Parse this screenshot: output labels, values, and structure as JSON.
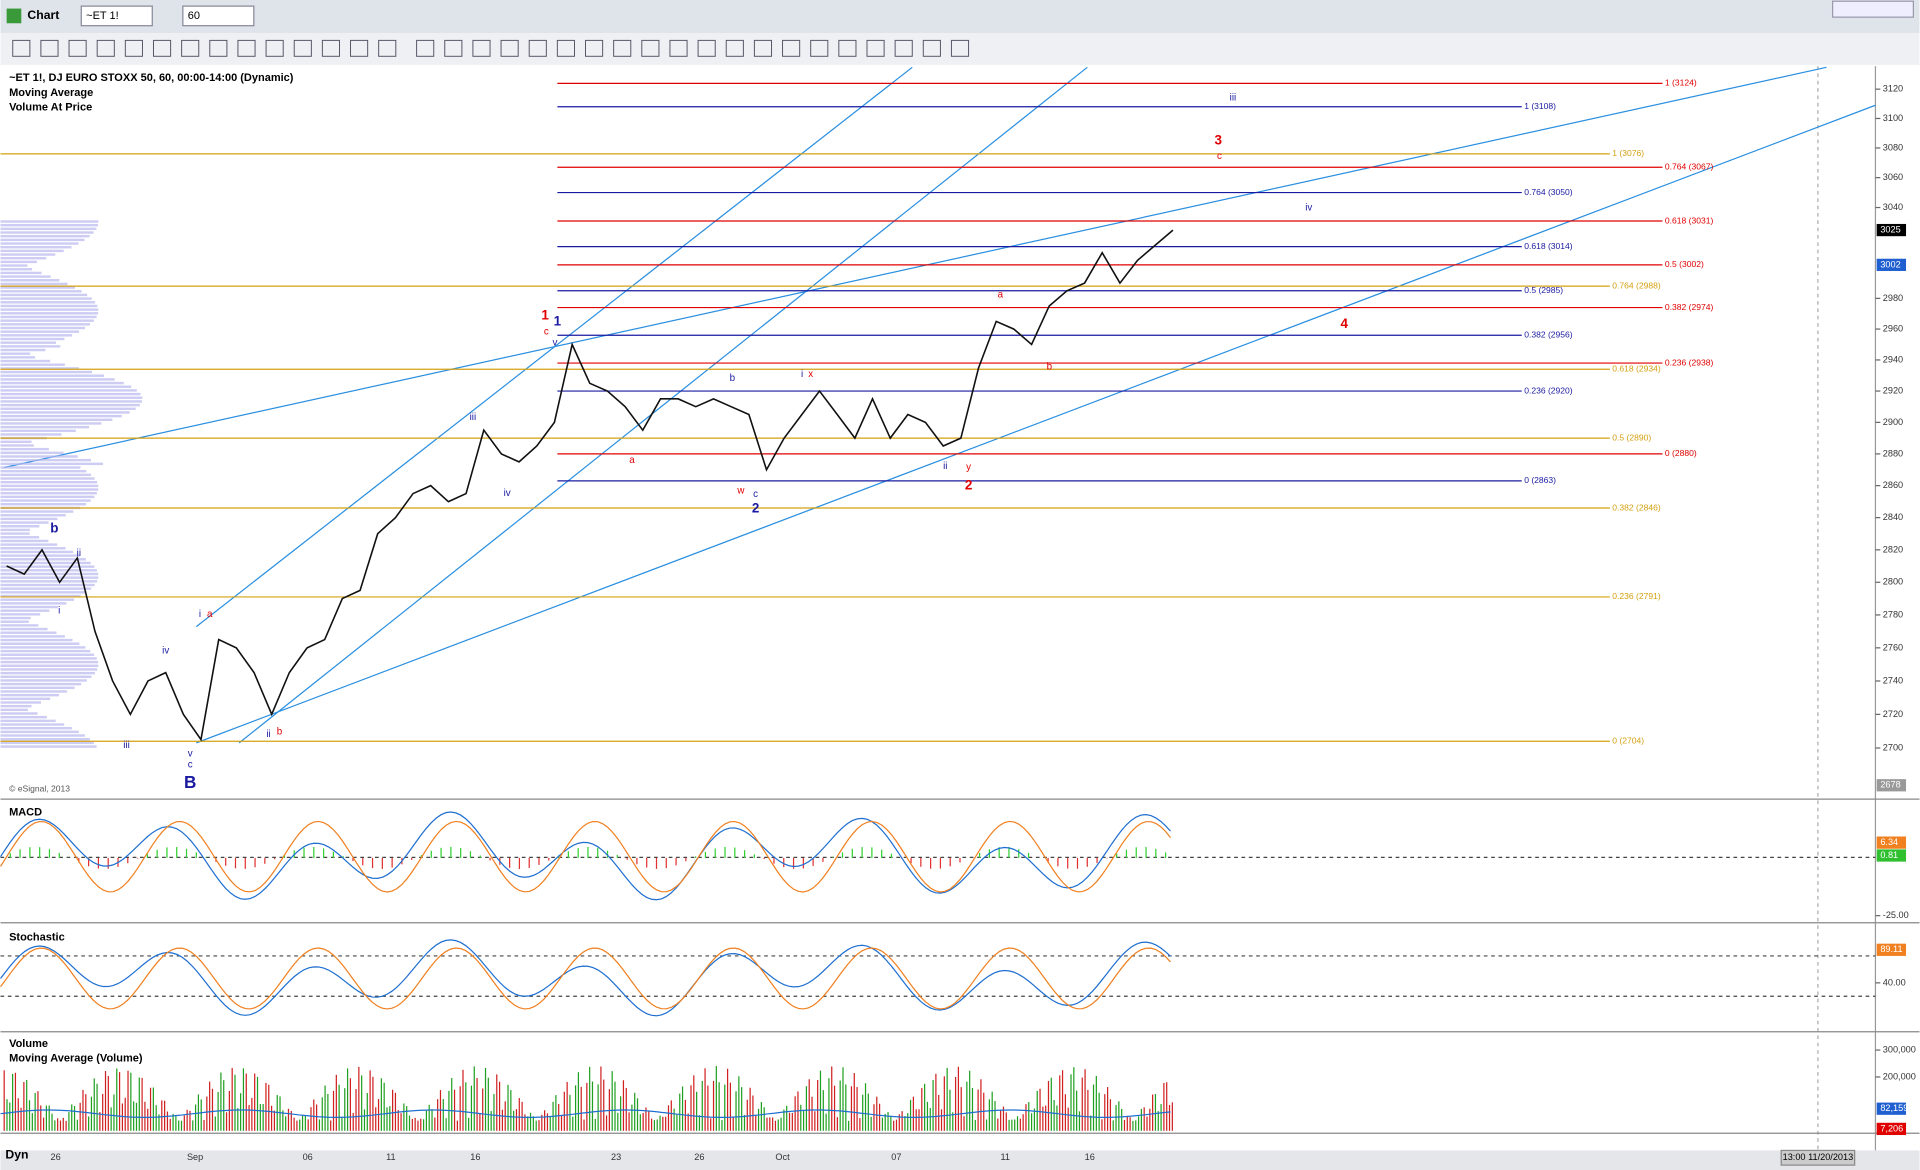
{
  "window": {
    "title": "Chart",
    "symbol": "~ET 1!",
    "interval": "60"
  },
  "legend": [
    "~ET 1!, DJ EURO STOXX 50, 60, 00:00-14:00 (Dynamic)",
    "Moving Average",
    "Volume At Price"
  ],
  "copyright": "© eSignal, 2013",
  "price": {
    "ylim": [
      2672,
      3135
    ],
    "log": true,
    "color": "#111111",
    "yticks": [
      2700,
      2720,
      2740,
      2760,
      2780,
      2800,
      2820,
      2840,
      2860,
      2880,
      2900,
      2920,
      2940,
      2960,
      2980,
      3040,
      3060,
      3080,
      3100,
      3120
    ],
    "closes": [
      2810,
      2805,
      2820,
      2800,
      2815,
      2770,
      2740,
      2720,
      2740,
      2745,
      2720,
      2705,
      2765,
      2760,
      2745,
      2720,
      2745,
      2760,
      2765,
      2790,
      2795,
      2830,
      2840,
      2855,
      2860,
      2850,
      2855,
      2895,
      2880,
      2875,
      2885,
      2900,
      2950,
      2925,
      2920,
      2910,
      2895,
      2915,
      2915,
      2910,
      2915,
      2910,
      2905,
      2870,
      2890,
      2905,
      2920,
      2905,
      2890,
      2915,
      2890,
      2905,
      2900,
      2885,
      2890,
      2935,
      2965,
      2960,
      2950,
      2975,
      2985,
      2990,
      3010,
      2990,
      3005,
      3015,
      3025
    ]
  },
  "markers": [
    {
      "value": 3025,
      "color": "#000000"
    },
    {
      "value": 3002,
      "color": "#1f5fd0"
    },
    {
      "value": 2678,
      "color": "#999999"
    }
  ],
  "fib_sets": [
    {
      "color": "#e00000",
      "levels": [
        {
          "label": "1 (3124)",
          "value": 3124
        },
        {
          "label": "0.764 (3067)",
          "value": 3067
        },
        {
          "label": "0.618 (3031)",
          "value": 3031
        },
        {
          "label": "0.5 (3002)",
          "value": 3002
        },
        {
          "label": "0.382 (2974)",
          "value": 2974
        },
        {
          "label": "0.236 (2938)",
          "value": 2938
        },
        {
          "label": "0 (2880)",
          "value": 2880
        }
      ]
    },
    {
      "color": "#1a1aa0",
      "levels": [
        {
          "label": "1 (3108)",
          "value": 3108
        },
        {
          "label": "0.764 (3050)",
          "value": 3050
        },
        {
          "label": "0.618 (3014)",
          "value": 3014
        },
        {
          "label": "0.5 (2985)",
          "value": 2985
        },
        {
          "label": "0.382 (2956)",
          "value": 2956
        },
        {
          "label": "0.236 (2920)",
          "value": 2920
        },
        {
          "label": "0 (2863)",
          "value": 2863
        }
      ]
    },
    {
      "color": "#d4a010",
      "levels": [
        {
          "label": "1 (3076)",
          "value": 3076
        },
        {
          "label": "0.764 (2988)",
          "value": 2988
        },
        {
          "label": "0.618 (2934)",
          "value": 2934
        },
        {
          "label": "0.5 (2890)",
          "value": 2890
        },
        {
          "label": "0.382 (2846)",
          "value": 2846
        },
        {
          "label": "0.236 (2791)",
          "value": 2791
        },
        {
          "label": "0 (2704)",
          "value": 2704
        }
      ]
    }
  ],
  "wave_labels": [
    {
      "text": "1",
      "color": "#e00000"
    },
    {
      "text": "c",
      "color": "#e00000"
    },
    {
      "text": "1",
      "color": "#1a1aa0"
    },
    {
      "text": "v",
      "color": "#1a1aa0"
    },
    {
      "text": "3",
      "color": "#e00000"
    },
    {
      "text": "c",
      "color": "#e00000"
    },
    {
      "text": "iii",
      "color": "#1a1aa0"
    },
    {
      "text": "iv",
      "color": "#1a1aa0"
    },
    {
      "text": "4",
      "color": "#e00000"
    },
    {
      "text": "b",
      "color": "#1a1aa0"
    },
    {
      "text": "i",
      "color": "#1a1aa0"
    },
    {
      "text": "ii",
      "color": "#1a1aa0"
    },
    {
      "text": "iii",
      "color": "#1a1aa0"
    },
    {
      "text": "iv",
      "color": "#1a1aa0"
    },
    {
      "text": "v",
      "color": "#1a1aa0"
    },
    {
      "text": "c",
      "color": "#1a1aa0"
    },
    {
      "text": "B",
      "color": "#1a1aa0"
    },
    {
      "text": "i",
      "color": "#1a1aa0"
    },
    {
      "text": "a",
      "color": "#e00000"
    },
    {
      "text": "ii",
      "color": "#1a1aa0"
    },
    {
      "text": "b",
      "color": "#e00000"
    },
    {
      "text": "iii",
      "color": "#1a1aa0"
    },
    {
      "text": "iv",
      "color": "#1a1aa0"
    },
    {
      "text": "a",
      "color": "#e00000"
    },
    {
      "text": "b",
      "color": "#1a1aa0"
    },
    {
      "text": "w",
      "color": "#e00000"
    },
    {
      "text": "c",
      "color": "#1a1aa0"
    },
    {
      "text": "2",
      "color": "#1a1aa0"
    },
    {
      "text": "i",
      "color": "#1a1aa0"
    },
    {
      "text": "x",
      "color": "#e00000"
    },
    {
      "text": "ii",
      "color": "#1a1aa0"
    },
    {
      "text": "y",
      "color": "#e00000"
    },
    {
      "text": "2",
      "color": "#e00000"
    },
    {
      "text": "a",
      "color": "#e00000"
    },
    {
      "text": "b",
      "color": "#e00000"
    }
  ],
  "x_labels": [
    "26",
    "Sep",
    "06",
    "11",
    "16",
    "23",
    "26",
    "Oct",
    "07",
    "11",
    "16"
  ],
  "status": "Dyn",
  "timestamp": "13:00 11/20/2013",
  "panes": [
    {
      "title": "MACD",
      "ylim": [
        -27,
        23.4
      ],
      "ticks": [
        {
          "value": -25,
          "label": "-25.00"
        }
      ],
      "levels": [
        0
      ],
      "tags": [
        {
          "value": 6.34,
          "label": "6.34",
          "color": "#f08020"
        },
        {
          "value": 0.81,
          "label": "0.81",
          "color": "#2fbf2f"
        }
      ]
    },
    {
      "title": "Stochastic",
      "ylim": [
        -29,
        122
      ],
      "ticks": [
        {
          "value": 40,
          "label": "40.00"
        }
      ],
      "levels": [
        20,
        80
      ],
      "tags": [
        {
          "value": 89.11,
          "label": "89.11",
          "color": "#f08020"
        }
      ]
    },
    {
      "title": "Volume",
      "subtitle": "Moving Average (Volume)",
      "ylim": [
        0,
        359000
      ],
      "ticks": [
        {
          "value": 300000,
          "label": "300,000"
        },
        {
          "value": 200000,
          "label": "200,000"
        }
      ],
      "levels": [],
      "tags": [
        {
          "value": 82159,
          "label": "82,159",
          "color": "#1f5fd0"
        },
        {
          "value": 7206,
          "label": "7,206",
          "color": "#e00000"
        }
      ]
    }
  ]
}
